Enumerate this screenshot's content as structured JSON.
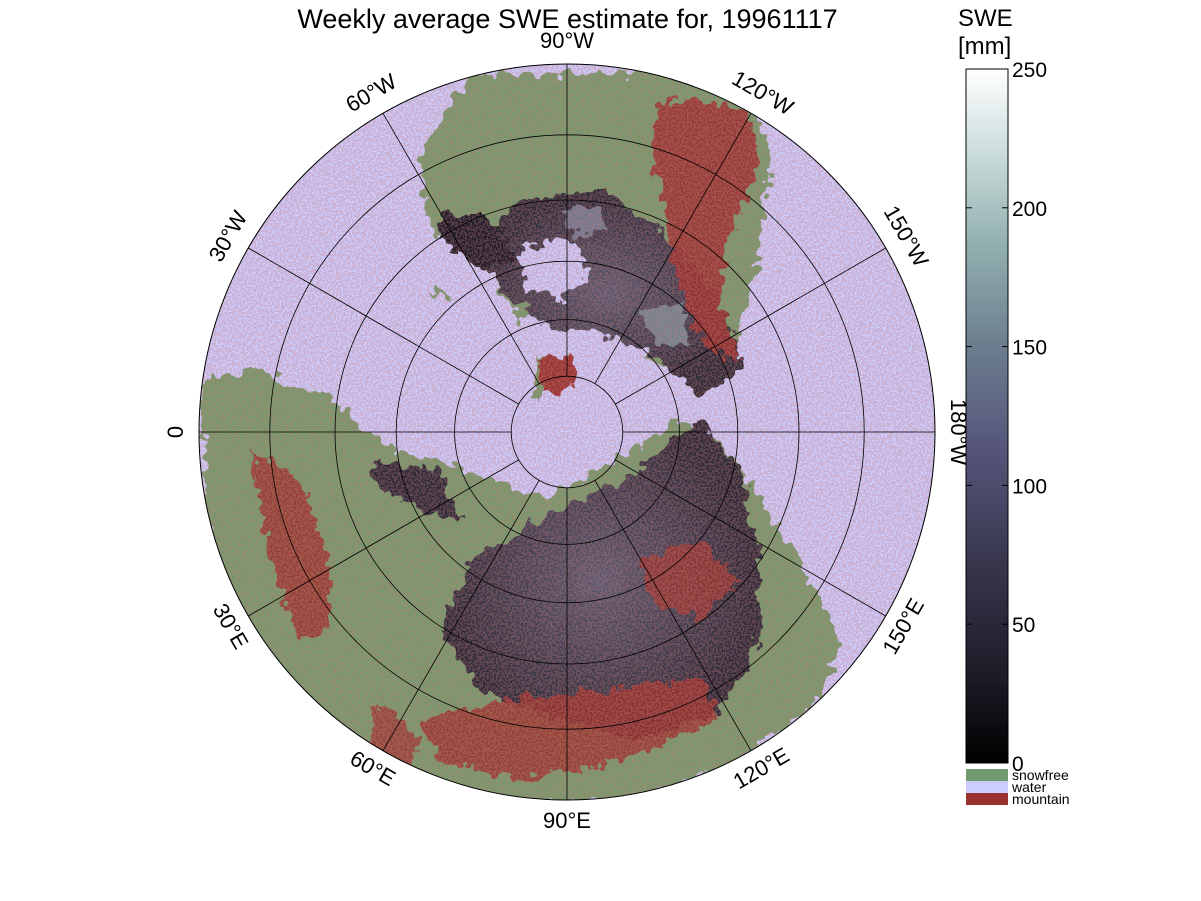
{
  "title": "Weekly average SWE estimate for, 19961117",
  "map": {
    "projection": "north-polar-stereographic",
    "graticule_labels": [
      "90°W",
      "120°W",
      "150°W",
      "180°W",
      "150°E",
      "120°E",
      "90°E",
      "60°E",
      "30°E",
      "0",
      "30°W",
      "60°W"
    ],
    "latitude_circles_deg": [
      80,
      70,
      60,
      50,
      40,
      30
    ],
    "colors": {
      "water": "#ccccff",
      "snowfree": "#739a6e",
      "mountain": "#973230",
      "snow_low": "#2a2938",
      "snow_mid": "#4a4a62",
      "snow_high": "#8fa8a8"
    }
  },
  "colorbar": {
    "title_line1": "SWE",
    "title_line2": "[mm]",
    "min": 0,
    "max": 250,
    "ticks": [
      "250",
      "200",
      "150",
      "100",
      "50",
      "0"
    ],
    "categories": [
      {
        "label": "snowfree",
        "color": "#739a6e"
      },
      {
        "label": "water",
        "color": "#ccccff"
      },
      {
        "label": "mountain",
        "color": "#973230"
      }
    ]
  }
}
